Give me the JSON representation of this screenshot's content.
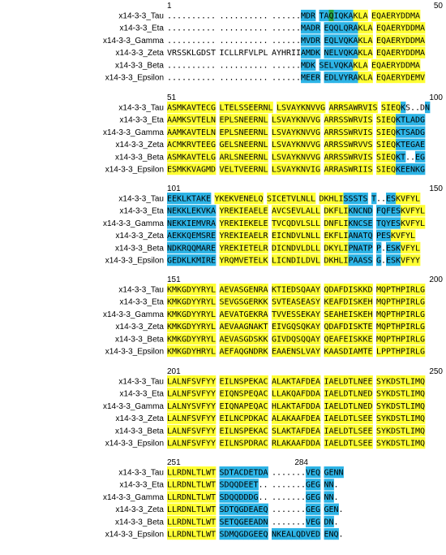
{
  "colors": {
    "Y": "#ffff33",
    "B": "#2db4e6",
    "G": "#2aa844",
    "W": "#ffffff"
  },
  "sequence_names": [
    "x14-3-3_Tau",
    "x14-3-3_Eta",
    "x14-3-3_Gamma",
    "x14-3-3_Zeta",
    "x14-3-3_Beta",
    "x14-3-3_Epsilon"
  ],
  "blocks": [
    {
      "start": "1",
      "end": "50",
      "rows": [
        {
          "seq": ".......... .......... ......MDR TAQIQKAKLA EQAERYDDMA",
          "color": "WWWWWWWWWW WWWWWWWWWW WWWWWWBBB BBGBBBBYYY YYYYYYYYYY"
        },
        {
          "seq": ".......... .......... ......MADR EQQLQRAKLA EQAERYDDMA",
          "color": "WWWWWWWWWW WWWWWWWWWW WWWWWWBBBB BBBBBBBYYY YYYYYYYYYY"
        },
        {
          "seq": ".......... .......... ......MVDR EQLVQKAKLA EQAERYDDMA",
          "color": "WWWWWWWWWW WWWWWWWWWW WWWWWWBBBB BBBBBBBYYY YYYYYYYYYY"
        },
        {
          "seq": "VRSSKLGDST ICLLRFVLPL AYHRIIAMDK NELVQKAKLA EQAERYDDMA",
          "color": "WWWWWWWWWW WWWWWWWWWW WWWWWWBBBB BBBBBBBYYY YYYYYYYYYY"
        },
        {
          "seq": ".......... .......... ......MDK SELVQKAKLA EQAERYDDMA",
          "color": "WWWWWWWWWW WWWWWWWWWW WWWWWWBBB BBBBBBBYYY YYYYYYYYYY"
        },
        {
          "seq": ".......... .......... ......MEER EDLVYRAKLA EQAERYDEMV",
          "color": "WWWWWWWWWW WWWWWWWWWW WWWWWWBBBB BBBBBBBYYY YYYYYYYYYY"
        }
      ]
    },
    {
      "start": "51",
      "end": "100",
      "rows": [
        {
          "seq": "ASMKAVTECG LTELSSEERNL LSVAYKNVVG ARRSAWRVIS SIEQKS..DN",
          "color": "YYYYYYYYYY YYYYYYYYYYY YYYYYYYYYY YYYYYYYYYY YYYYBWWWWB"
        },
        {
          "seq": "AAMKSVTELN EPLSNEERNL LSVAYKNVVG ARRSSWRVIS SIEQKTLADG",
          "color": "YYYYYYYYYY YYYYYYYYYY YYYYYYYYYY YYYYYYYYYY YYYYBBBBBB"
        },
        {
          "seq": "AAMKAVTELN EPLSNEERNL LSVAYKNVVG ARRSSWRVIS SIEQKTSADG",
          "color": "YYYYYYYYYY YYYYYYYYYY YYYYYYYYYY YYYYYYYYYY YYYYBBBBBB"
        },
        {
          "seq": "ACMKRVTEEG GELSNEERNL LSVAYKNVVG ARRSSWRVVS SIEQKTEGAE",
          "color": "YYYYYYYYYY YYYYYYYYYY YYYYYYYYYY YYYYYYYYYY YYYYBBBBBB"
        },
        {
          "seq": "ASMKAVTELG ARLSNEERNL LSVAYKNVVG ARRSSWRVIS SIEQKT..EG",
          "color": "YYYYYYYYYY YYYYYYYYYY YYYYYYYYYY YYYYYYYYYY YYYYBBWWBB"
        },
        {
          "seq": "ESMKKVAGMD VELTVEERNL LSVAYKNVIG ARRASWRIIS SIEQKEENKG",
          "color": "YYYYYYYYYY YYYYYYYYYY YYYYYYYYYY YYYYYYYYYY YYYYBBBBBB"
        }
      ]
    },
    {
      "start": "101",
      "end": "150",
      "rows": [
        {
          "seq": "EEKLKTAKE YKEKVENELQ SICETVLNLL DKHLISSSTS T..ESKVFYL",
          "color": "BBBBBBBBB YYYYYYYYYY YYYYYYYYYY YYYYYBBBBB BWWBBYYYYY"
        },
        {
          "seq": "NEKKLEKVKA YREKIEAELE AVCSEVLALL DKFLIKNCND FQFESKVFYL",
          "color": "BBBBBBBBBB YYYYYYYYYY YYYYYYYYYY YYYYYBBBBB BBBBBYYYYY"
        },
        {
          "seq": "NEKKIEMVRA YREKIEKELE TVCQDVLSLL DNFLIKNCSE TQYESKVFYL",
          "color": "BBBBBBBBBB YYYYYYYYYY YYYYYYYYYY YYYYYBBBBB BBBBBYYYYY"
        },
        {
          "seq": "AEKKQEMSRE YREKIEAELR EICNDVLNLL EKFLIANATQ PESKVFYL",
          "color": "BBBBBBBBBB YYYYYYYYYY YYYYYYYYYY YYYYYBBBBB BBBYYYYY"
        },
        {
          "seq": "NDKRQQMARE YREKIETELR DICNDVLDLL DKYLIPNATP P.ESKVFYL",
          "color": "BBBBBBBBBB YYYYYYYYYY YYYYYYYYYY YYYYYBBBBB BWBBBYYYYY"
        },
        {
          "seq": "GEDKLKMIRE YRQMVETELK LICNDILDVL DKHLIPAASS G.ESKVFYY",
          "color": "BBBBBBBBBB YYYYYYYYYY YYYYYYYYYY YYYYYBBBBB BWBBBYYYY"
        }
      ]
    },
    {
      "start": "151",
      "end": "200",
      "rows": [
        {
          "seq": "KMKGDYYRYL AEVASGENRA KTIEDSQAAY QDAFDISKKD MQPTHPIRLG",
          "color": "YYYYYYYYYY YYYYYYYYYY YYYYYYYYYY YYYYYYYYYY YYYYYYYYYY"
        },
        {
          "seq": "KMKGDYYRYL SEVGSGERKK SVTEASEASY KEAFDISKEH MQPTHPIRLG",
          "color": "YYYYYYYYYY YYYYYYYYYY YYYYYYYYYY YYYYYYYYYY YYYYYYYYYY"
        },
        {
          "seq": "KMKGDYYRYL AEVATGEKRA TVVESSEKAY SEAHEISKEH MQPTHPIRLG",
          "color": "YYYYYYYYYY YYYYYYYYYY YYYYYYYYYY YYYYYYYYYY YYYYYYYYYY"
        },
        {
          "seq": "KMKGDYYRYL AEVAAGNAKT EIVGQSQKAY QDAFDISKTE MQPTHPIRLG",
          "color": "YYYYYYYYYY YYYYYYYYYY YYYYYYYYYY YYYYYYYYYY YYYYYYYYYY"
        },
        {
          "seq": "KMKGDYYRYL AEVASGDSKK GIVDQSQQAY QEAFEISKKE MQPTHPIRLG",
          "color": "YYYYYYYYYY YYYYYYYYYY YYYYYYYYYY YYYYYYYYYY YYYYYYYYYY"
        },
        {
          "seq": "KMKGDYHRYL AEFAQGNDRK EAAENSLVAY KAASDIAMTE LPPTHPIRLG",
          "color": "YYYYYYYYYY YYYYYYYYYY YYYYYYYYYY YYYYYYYYYY YYYYYYYYYY"
        }
      ]
    },
    {
      "start": "201",
      "end": "250",
      "rows": [
        {
          "seq": "LALNFSVFYY EILNSPEKAC ALAKTAFDEA IAELDTLNEE SYKDSTLIMQ",
          "color": "YYYYYYYYYY YYYYYYYYYY YYYYYYYYYY YYYYYYYYYY YYYYYYYYYY"
        },
        {
          "seq": "LALNFSVFYY EIQNSPEQAC LLAKQAFDDA IAELDTLNED SYKDSTLIMQ",
          "color": "YYYYYYYYYY YYYYYYYYYY YYYYYYYYYY YYYYYYYYYY YYYYYYYYYY"
        },
        {
          "seq": "LALNYSVFYY EIQNAPEQAC HLAKTAFDDA IAELDTLNED SYKDSTLIMQ",
          "color": "YYYYYYYYYY YYYYYYYYYY YYYYYYYYYY YYYYYYYYYY YYYYYYYYYY"
        },
        {
          "seq": "LALNFSVFYY EILNCPDKAC ALAKAAFDEA IAELDTLSEE SYKDSTLIMQ",
          "color": "YYYYYYYYYY YYYYYYYYYY YYYYYYYYYY YYYYYYYYYY YYYYYYYYYY"
        },
        {
          "seq": "LALNFSVFYY EILNSPEKAC SLAKTAFDEA IAELDTLSEE SYKDSTLIMQ",
          "color": "YYYYYYYYYY YYYYYYYYYY YYYYYYYYYY YYYYYYYYYY YYYYYYYYYY"
        },
        {
          "seq": "LALNFSVFYY EILNSPDRAC RLAKAAFDDA IAELDTLSEE SYKDSTLIMQ",
          "color": "YYYYYYYYYY YYYYYYYYYY YYYYYYYYYY YYYYYYYYYY YYYYYYYYYY"
        }
      ]
    },
    {
      "start": "251",
      "end": "284",
      "rows": [
        {
          "seq": "LLRDNLTLWT SDTACDETDA .......VEQ GENN",
          "color": "YYYYYYYYYY BBBBBBBBBB WWWWWWWBBB BBBB"
        },
        {
          "seq": "LLRDNLTLWT SDQQDEET.. .......GEG NN.",
          "color": "YYYYYYYYYY BBBBBBBBWW WWWWWWWBBB BBW"
        },
        {
          "seq": "LLRDNLTLWT SDQQDDDG.. .......GEG NN.",
          "color": "YYYYYYYYYY BBBBBBBBWW WWWWWWWBBB BBW"
        },
        {
          "seq": "LLRDNLTLWT SDTQGDEAEQ .......GEG GEN.",
          "color": "YYYYYYYYYY BBBBBBBBBB WWWWWWWBBB BBBW"
        },
        {
          "seq": "LLRDNLTLWT SETQGEEADN .......VEG DN.",
          "color": "YYYYYYYYYY BBBBBBBBBB WWWWWWWBBB BBW"
        },
        {
          "seq": "LLRDNLTLWT SDMQGDGEEQ NKEALQDVED ENQ.",
          "color": "YYYYYYYYYY BBBBBBBBBB BBBBBBBBBB BBBW"
        }
      ]
    }
  ]
}
